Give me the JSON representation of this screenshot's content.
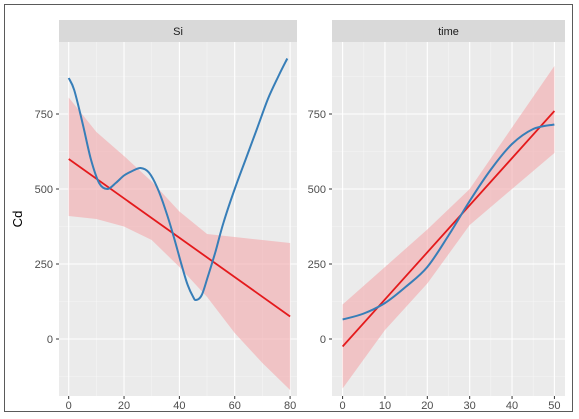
{
  "chart_data": {
    "type": "line",
    "ylabel": "Cd",
    "panels": [
      {
        "strip": "Si",
        "xlim": [
          -3.5,
          82.5
        ],
        "ylim": [
          -190,
          990
        ],
        "xticks": [
          0,
          20,
          40,
          60,
          80
        ],
        "yticks": [
          0,
          250,
          500,
          750
        ],
        "series": [
          {
            "name": "linear fit",
            "color": "#e41a1c",
            "x": [
              0,
              80
            ],
            "y": [
              600,
              75
            ]
          },
          {
            "name": "confidence band",
            "color": "#f4a9ab",
            "x": [
              0,
              10,
              20,
              30,
              40,
              50,
              60,
              70,
              80
            ],
            "upper": [
              805,
              690,
              610,
              525,
              425,
              350,
              340,
              330,
              320
            ],
            "lower": [
              410,
              400,
              375,
              330,
              240,
              140,
              20,
              -80,
              -170
            ]
          },
          {
            "name": "loess smooth",
            "color": "#377eb8",
            "x": [
              0,
              2,
              5,
              8,
              11,
              14,
              17,
              20,
              23,
              26,
              29,
              32,
              35,
              38,
              41,
              43,
              45,
              46,
              48,
              50,
              53,
              56,
              60,
              64,
              68,
              72,
              76,
              79
            ],
            "y": [
              870,
              830,
              720,
              600,
              520,
              500,
              520,
              545,
              560,
              570,
              555,
              505,
              430,
              340,
              240,
              180,
              140,
              130,
              145,
              200,
              290,
              390,
              500,
              600,
              700,
              800,
              880,
              935
            ]
          }
        ]
      },
      {
        "strip": "time",
        "xlim": [
          -2.5,
          52.5
        ],
        "ylim": [
          -190,
          990
        ],
        "xticks": [
          0,
          10,
          20,
          30,
          40,
          50
        ],
        "yticks": [
          0,
          250,
          500,
          750
        ],
        "series": [
          {
            "name": "linear fit",
            "color": "#e41a1c",
            "x": [
              0,
              50
            ],
            "y": [
              -25,
              760
            ]
          },
          {
            "name": "confidence band",
            "color": "#f4a9ab",
            "x": [
              0,
              10,
              20,
              30,
              40,
              50
            ],
            "upper": [
              115,
              240,
              365,
              500,
              705,
              910
            ],
            "lower": [
              -165,
              30,
              185,
              380,
              500,
              620
            ]
          },
          {
            "name": "loess smooth",
            "color": "#377eb8",
            "x": [
              0,
              5,
              10,
              15,
              20,
              25,
              30,
              35,
              40,
              45,
              50
            ],
            "y": [
              65,
              85,
              120,
              175,
              240,
              345,
              460,
              565,
              650,
              700,
              715
            ]
          }
        ]
      }
    ]
  }
}
